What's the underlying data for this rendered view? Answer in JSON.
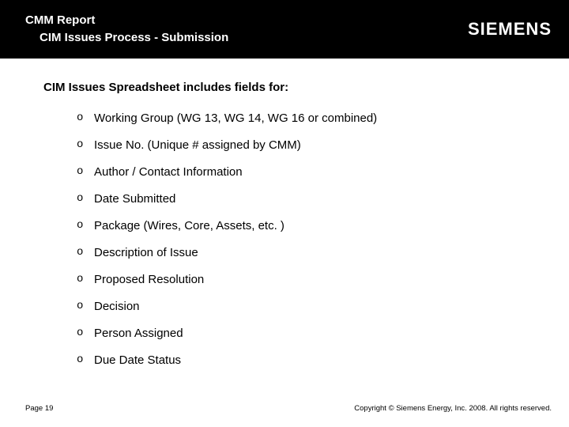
{
  "header": {
    "title": "CMM Report",
    "subtitle": "CIM Issues Process - Submission",
    "logo_text": "SIEMENS"
  },
  "section_heading": "CIM Issues Spreadsheet includes fields for:",
  "items": [
    "Working Group (WG 13, WG 14, WG 16 or combined)",
    "Issue No. (Unique # assigned by CMM)",
    "Author / Contact Information",
    "Date Submitted",
    "Package (Wires, Core, Assets, etc. )",
    "Description of Issue",
    "Proposed Resolution",
    "Decision",
    "Person Assigned",
    "Due Date Status"
  ],
  "footer": {
    "page": "Page 19",
    "copyright": "Copyright © Siemens Energy, Inc. 2008. All rights reserved."
  },
  "colors": {
    "header_bg": "#000000",
    "header_text": "#ffffff",
    "body_bg": "#ffffff",
    "text": "#000000"
  },
  "typography": {
    "title_fontsize": 15,
    "list_fontsize": 15,
    "footer_fontsize": 9.5,
    "logo_fontsize": 22
  }
}
